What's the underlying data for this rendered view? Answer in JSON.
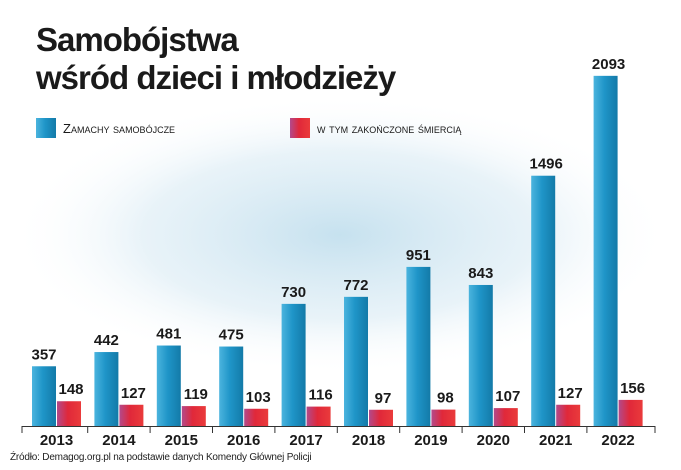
{
  "colors": {
    "attempts": "#1f95c8",
    "deaths": "#e0283a",
    "background_glow": "#bcdcec",
    "axis": "#333333"
  },
  "chart_data": {
    "type": "bar",
    "title": "Samobójstwa",
    "subtitle": "wśród dzieci i młodzieży",
    "xlabel": "",
    "ylabel": "",
    "ylim": [
      0,
      2200
    ],
    "grid": false,
    "legend": "top-left",
    "categories": [
      "2013",
      "2014",
      "2015",
      "2016",
      "2017",
      "2018",
      "2019",
      "2020",
      "2021",
      "2022"
    ],
    "series": [
      {
        "name": "Zamachy samobójcze",
        "values": [
          357,
          442,
          481,
          475,
          730,
          772,
          951,
          843,
          1496,
          2093
        ]
      },
      {
        "name": "w tym zakończone śmiercią",
        "values": [
          148,
          127,
          119,
          103,
          116,
          97,
          98,
          107,
          127,
          156
        ]
      }
    ]
  },
  "source_note": "Źródło: Demagog.org.pl na podstawie danych Komendy Głównej Policji"
}
